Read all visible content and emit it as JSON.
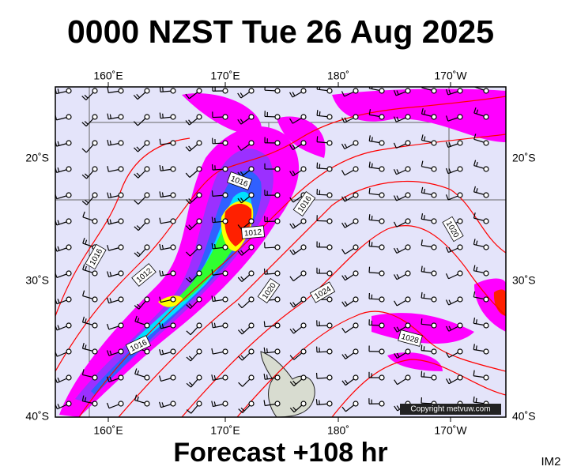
{
  "title": "0000 NZST Tue 26 Aug 2025",
  "footer": "Forecast +108 hr",
  "corner": "IM2",
  "copyright": "Copyright metvuw.com",
  "longitudes": [
    "160˚E",
    "170˚E",
    "180˚",
    "170˚W"
  ],
  "latitudes": [
    "20˚S",
    "30˚S",
    "40˚S"
  ],
  "isobar_labels": [
    "1016",
    "1012",
    "1016",
    "1016",
    "1012",
    "1016",
    "1020",
    "1024",
    "1028",
    "1020"
  ]
}
